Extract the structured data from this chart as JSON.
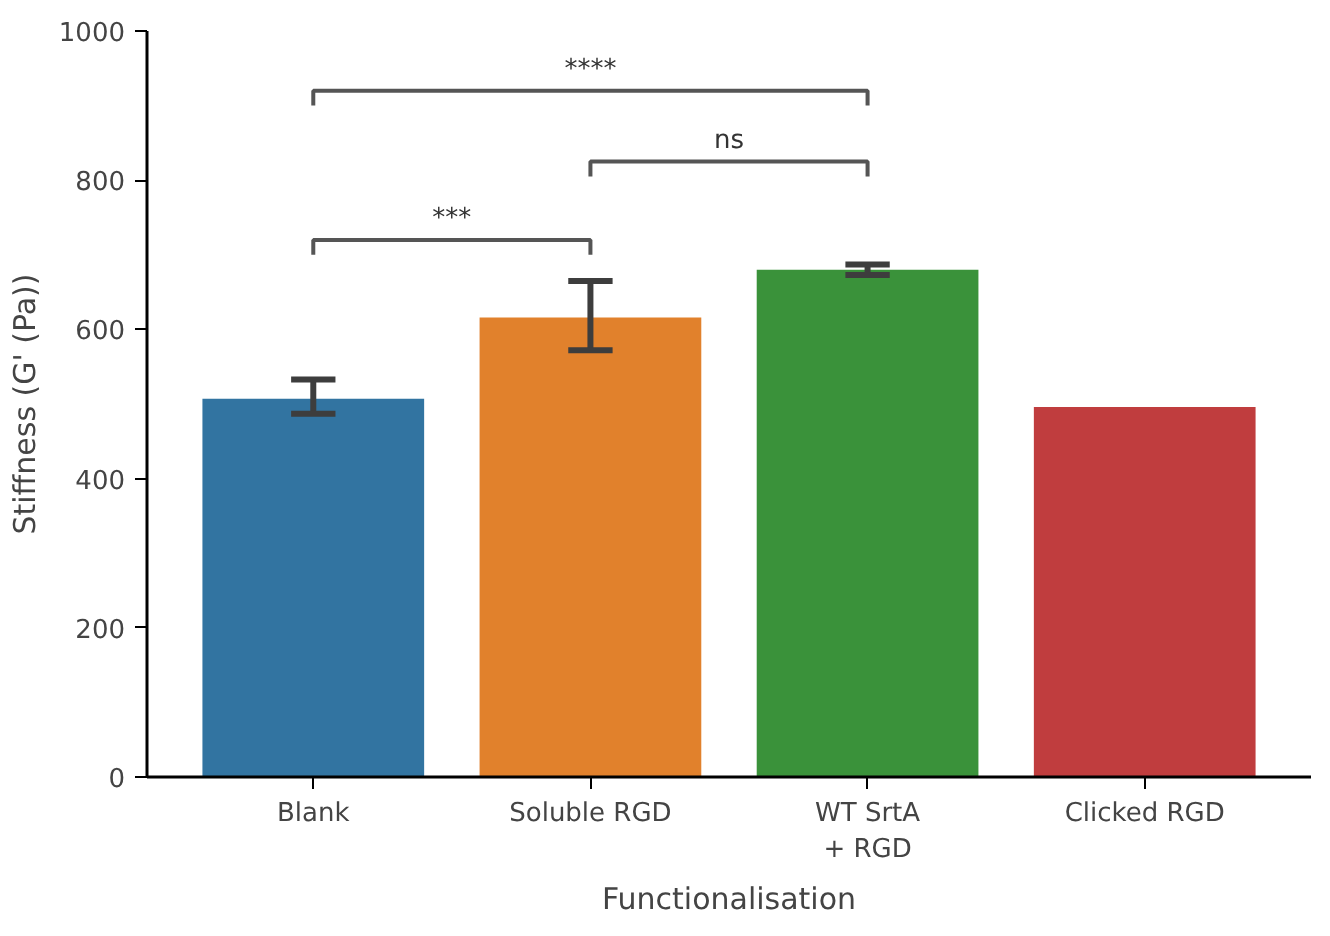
{
  "chart_data": {
    "type": "bar",
    "xlabel": "Functionalisation",
    "ylabel": "Stiffness (G' (Pa))",
    "categories": [
      "Blank",
      "Soluble RGD",
      "WT SrtA\n+ RGD",
      "Clicked RGD"
    ],
    "values": [
      507,
      616,
      680,
      496
    ],
    "colors": [
      "#3274a1",
      "#e1812c",
      "#3a923a",
      "#c03d3e"
    ],
    "errors": [
      [
        487,
        533
      ],
      [
        572,
        665
      ],
      [
        673,
        687
      ],
      null
    ],
    "ylim": [
      0,
      1000
    ],
    "yticks": [
      0,
      200,
      400,
      600,
      800,
      1000
    ],
    "grid": false,
    "annotations": [
      "****",
      "ns",
      "***"
    ]
  }
}
